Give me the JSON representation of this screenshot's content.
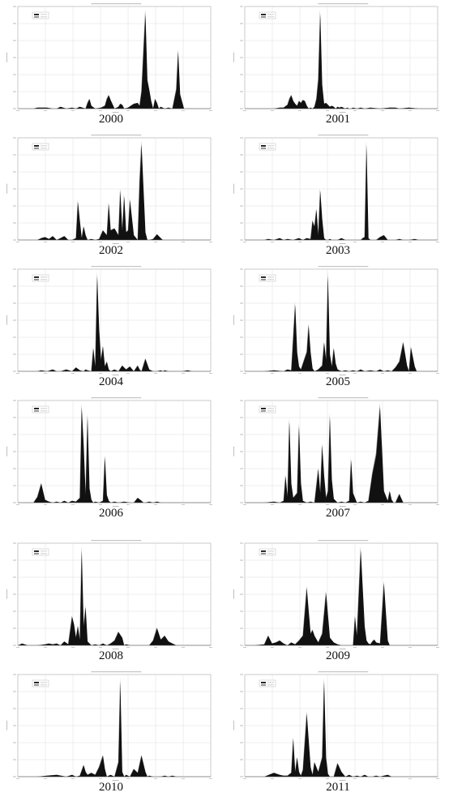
{
  "figure": {
    "layout": "6 rows x 2 columns of yearly area plots"
  },
  "chart_data": [
    {
      "type": "area",
      "year_label": "2000",
      "x": [
        0.05,
        0.08,
        0.1,
        0.15,
        0.18,
        0.2,
        0.22,
        0.25,
        0.28,
        0.3,
        0.32,
        0.35,
        0.36,
        0.37,
        0.38,
        0.4,
        0.43,
        0.45,
        0.46,
        0.47,
        0.48,
        0.5,
        0.52,
        0.53,
        0.54,
        0.55,
        0.57,
        0.6,
        0.62,
        0.63,
        0.64,
        0.65,
        0.66,
        0.67,
        0.68,
        0.69,
        0.7,
        0.71,
        0.72,
        0.73,
        0.74,
        0.76,
        0.78,
        0.8,
        0.82,
        0.83,
        0.84,
        0.86,
        0.9
      ],
      "y": [
        0,
        0,
        0.01,
        0.01,
        0,
        0,
        0.02,
        0,
        0.01,
        0,
        0.02,
        0,
        0.06,
        0.1,
        0.03,
        0,
        0.01,
        0.03,
        0.1,
        0.14,
        0.09,
        0,
        0.02,
        0.05,
        0.04,
        0,
        0.01,
        0.05,
        0.06,
        0.03,
        0.18,
        0.6,
        1.0,
        0.3,
        0.2,
        0.08,
        0,
        0.1,
        0.06,
        0,
        0.02,
        0,
        0.01,
        0,
        0.2,
        0.6,
        0.15,
        0,
        0
      ]
    },
    {
      "type": "area",
      "year_label": "2001",
      "x": [
        0.05,
        0.1,
        0.15,
        0.18,
        0.2,
        0.22,
        0.23,
        0.24,
        0.25,
        0.26,
        0.27,
        0.28,
        0.29,
        0.3,
        0.31,
        0.32,
        0.33,
        0.34,
        0.35,
        0.36,
        0.37,
        0.38,
        0.39,
        0.4,
        0.41,
        0.42,
        0.43,
        0.44,
        0.45,
        0.46,
        0.47,
        0.48,
        0.49,
        0.5,
        0.52,
        0.53,
        0.54,
        0.55,
        0.56,
        0.58,
        0.6,
        0.62,
        0.65,
        0.7,
        0.75,
        0.78,
        0.8,
        0.85,
        0.9
      ],
      "y": [
        0,
        0,
        0,
        0.01,
        0.01,
        0.04,
        0.1,
        0.14,
        0.08,
        0.05,
        0.03,
        0.08,
        0.06,
        0.09,
        0.08,
        0.03,
        0,
        0.01,
        0,
        0.02,
        0.1,
        0.3,
        1.0,
        0.25,
        0.05,
        0.06,
        0.04,
        0.02,
        0.03,
        0.02,
        0,
        0.02,
        0.01,
        0.02,
        0,
        0.01,
        0,
        0,
        0.01,
        0,
        0.01,
        0,
        0.01,
        0,
        0.01,
        0.01,
        0,
        0.01,
        0
      ]
    },
    {
      "type": "area",
      "year_label": "2002",
      "x": [
        0.05,
        0.1,
        0.12,
        0.14,
        0.16,
        0.18,
        0.2,
        0.22,
        0.24,
        0.26,
        0.28,
        0.3,
        0.31,
        0.32,
        0.33,
        0.34,
        0.35,
        0.36,
        0.38,
        0.4,
        0.42,
        0.44,
        0.46,
        0.47,
        0.48,
        0.5,
        0.52,
        0.53,
        0.54,
        0.55,
        0.56,
        0.57,
        0.58,
        0.6,
        0.62,
        0.63,
        0.64,
        0.66,
        0.67,
        0.68,
        0.7,
        0.72,
        0.74,
        0.75,
        0.76,
        0.78,
        0.8,
        0.82,
        0.84
      ],
      "y": [
        0,
        0,
        0.02,
        0.03,
        0.01,
        0.04,
        0,
        0.02,
        0.04,
        0,
        0,
        0.02,
        0.4,
        0.2,
        0.02,
        0.14,
        0.05,
        0,
        0.01,
        0,
        0.01,
        0.1,
        0.05,
        0.38,
        0.1,
        0.12,
        0.05,
        0.52,
        0.1,
        0.46,
        0.08,
        0.1,
        0.42,
        0.05,
        0,
        0.6,
        1.0,
        0.08,
        0,
        0,
        0.01,
        0.06,
        0.02,
        0,
        0,
        0,
        0,
        0,
        0
      ]
    },
    {
      "type": "area",
      "year_label": "2003",
      "x": [
        0.05,
        0.1,
        0.12,
        0.15,
        0.18,
        0.2,
        0.22,
        0.25,
        0.28,
        0.3,
        0.32,
        0.34,
        0.35,
        0.36,
        0.37,
        0.38,
        0.39,
        0.4,
        0.41,
        0.42,
        0.43,
        0.44,
        0.45,
        0.46,
        0.48,
        0.5,
        0.52,
        0.54,
        0.56,
        0.58,
        0.6,
        0.61,
        0.62,
        0.63,
        0.64,
        0.65,
        0.66,
        0.68,
        0.7,
        0.72,
        0.74,
        0.76,
        0.78,
        0.8,
        0.82,
        0.85,
        0.88,
        0.9,
        0.92
      ],
      "y": [
        0,
        0,
        0.01,
        0,
        0.02,
        0,
        0.01,
        0,
        0.02,
        0,
        0.02,
        0.01,
        0.2,
        0.14,
        0.32,
        0.05,
        0.52,
        0.22,
        0.02,
        0,
        0,
        0.01,
        0,
        0,
        0,
        0.02,
        0,
        0,
        0,
        0,
        0,
        0.02,
        0.03,
        1.0,
        0.02,
        0,
        0,
        0,
        0.03,
        0.05,
        0,
        0,
        0,
        0.01,
        0,
        0,
        0.01,
        0,
        0
      ]
    },
    {
      "type": "area",
      "year_label": "2004",
      "x": [
        0.05,
        0.1,
        0.12,
        0.15,
        0.18,
        0.2,
        0.22,
        0.25,
        0.28,
        0.3,
        0.32,
        0.34,
        0.35,
        0.36,
        0.38,
        0.39,
        0.4,
        0.41,
        0.42,
        0.43,
        0.44,
        0.45,
        0.46,
        0.47,
        0.48,
        0.5,
        0.52,
        0.54,
        0.56,
        0.58,
        0.6,
        0.62,
        0.63,
        0.64,
        0.66,
        0.68,
        0.7,
        0.72,
        0.74,
        0.75,
        0.76,
        0.78,
        0.8,
        0.82,
        0.85,
        0.88,
        0.9,
        0.92,
        0.95
      ],
      "y": [
        0,
        0,
        0.01,
        0,
        0.02,
        0,
        0,
        0.02,
        0,
        0.04,
        0.01,
        0,
        0.02,
        0.01,
        0,
        0.24,
        0.05,
        1.0,
        0.44,
        0.12,
        0.26,
        0.05,
        0.1,
        0.02,
        0,
        0.02,
        0,
        0.06,
        0.02,
        0.05,
        0,
        0.06,
        0.02,
        0,
        0.13,
        0.02,
        0,
        0,
        0.01,
        0,
        0.01,
        0,
        0,
        0,
        0,
        0.01,
        0,
        0,
        0
      ]
    },
    {
      "type": "area",
      "year_label": "2005",
      "x": [
        0.05,
        0.1,
        0.15,
        0.2,
        0.22,
        0.24,
        0.26,
        0.27,
        0.28,
        0.29,
        0.3,
        0.32,
        0.33,
        0.34,
        0.35,
        0.36,
        0.38,
        0.4,
        0.41,
        0.42,
        0.43,
        0.44,
        0.45,
        0.46,
        0.47,
        0.48,
        0.5,
        0.52,
        0.54,
        0.56,
        0.58,
        0.6,
        0.62,
        0.65,
        0.68,
        0.7,
        0.72,
        0.74,
        0.76,
        0.78,
        0.8,
        0.82,
        0.84,
        0.85,
        0.86,
        0.88,
        0.89,
        0.9,
        0.92
      ],
      "y": [
        0,
        0,
        0.01,
        0,
        0.02,
        0.01,
        0.7,
        0.2,
        0.05,
        0.02,
        0.08,
        0.2,
        0.48,
        0.2,
        0.03,
        0,
        0.02,
        0.06,
        0.3,
        0.12,
        1.0,
        0.18,
        0.05,
        0.24,
        0.08,
        0.02,
        0,
        0.01,
        0,
        0.01,
        0,
        0.02,
        0,
        0.01,
        0,
        0.02,
        0,
        0.01,
        0,
        0.04,
        0.1,
        0.3,
        0.06,
        0,
        0.25,
        0.05,
        0,
        0,
        0
      ]
    },
    {
      "type": "area",
      "year_label": "2006",
      "x": [
        0.05,
        0.08,
        0.1,
        0.12,
        0.14,
        0.16,
        0.18,
        0.2,
        0.22,
        0.24,
        0.26,
        0.28,
        0.3,
        0.32,
        0.33,
        0.34,
        0.35,
        0.36,
        0.37,
        0.38,
        0.39,
        0.4,
        0.42,
        0.44,
        0.45,
        0.46,
        0.47,
        0.48,
        0.5,
        0.52,
        0.55,
        0.58,
        0.6,
        0.62,
        0.64,
        0.65,
        0.66,
        0.68,
        0.7,
        0.72,
        0.74,
        0.76,
        0.78,
        0.8,
        0.82,
        0.85,
        0.88,
        0.9,
        0.92
      ],
      "y": [
        0,
        0,
        0.06,
        0.2,
        0.03,
        0.01,
        0,
        0.01,
        0,
        0.02,
        0,
        0.02,
        0.01,
        0.05,
        1.0,
        0.6,
        0.08,
        0.9,
        0.15,
        0.03,
        0,
        0.01,
        0,
        0.02,
        0.48,
        0.08,
        0.02,
        0,
        0.01,
        0,
        0.01,
        0,
        0,
        0.05,
        0.02,
        0,
        0,
        0.01,
        0,
        0.01,
        0,
        0,
        0,
        0,
        0,
        0,
        0,
        0,
        0
      ]
    },
    {
      "type": "area",
      "year_label": "2007",
      "x": [
        0.05,
        0.1,
        0.15,
        0.18,
        0.2,
        0.21,
        0.22,
        0.23,
        0.24,
        0.25,
        0.27,
        0.28,
        0.29,
        0.3,
        0.32,
        0.34,
        0.36,
        0.38,
        0.39,
        0.4,
        0.41,
        0.42,
        0.43,
        0.44,
        0.45,
        0.46,
        0.47,
        0.48,
        0.5,
        0.52,
        0.54,
        0.55,
        0.56,
        0.58,
        0.6,
        0.62,
        0.64,
        0.66,
        0.68,
        0.7,
        0.72,
        0.74,
        0.75,
        0.76,
        0.77,
        0.78,
        0.8,
        0.82,
        0.84
      ],
      "y": [
        0,
        0,
        0.01,
        0,
        0.02,
        0.28,
        0.06,
        0.85,
        0.2,
        0.05,
        0.1,
        0.8,
        0.2,
        0.02,
        0,
        0.01,
        0,
        0.35,
        0.1,
        0.6,
        0.28,
        0.05,
        0.12,
        0.9,
        0.24,
        0.04,
        0.02,
        0,
        0.01,
        0,
        0.02,
        0.45,
        0.1,
        0,
        0.01,
        0,
        0.02,
        0.3,
        0.5,
        1.0,
        0.12,
        0.02,
        0.12,
        0.03,
        0,
        0,
        0.09,
        0,
        0
      ]
    },
    {
      "type": "area",
      "year_label": "2008",
      "x": [
        0.02,
        0.05,
        0.1,
        0.14,
        0.16,
        0.18,
        0.2,
        0.22,
        0.24,
        0.26,
        0.28,
        0.29,
        0.3,
        0.31,
        0.32,
        0.33,
        0.34,
        0.35,
        0.36,
        0.38,
        0.4,
        0.42,
        0.44,
        0.46,
        0.48,
        0.5,
        0.52,
        0.54,
        0.55,
        0.56,
        0.58,
        0.6,
        0.62,
        0.64,
        0.66,
        0.68,
        0.7,
        0.72,
        0.74,
        0.76,
        0.78,
        0.8,
        0.82,
        0.84,
        0.86,
        0.88,
        0.9,
        0.92,
        0.95
      ],
      "y": [
        0.02,
        0,
        0,
        0.01,
        0.02,
        0.01,
        0.02,
        0,
        0.04,
        0.01,
        0.3,
        0.22,
        0.08,
        0.2,
        0.06,
        1.0,
        0.2,
        0.4,
        0.04,
        0,
        0.01,
        0,
        0.02,
        0,
        0.02,
        0.05,
        0.14,
        0.08,
        0,
        0.01,
        0,
        0,
        0,
        0,
        0,
        0,
        0.05,
        0.18,
        0.06,
        0.1,
        0.04,
        0.02,
        0,
        0,
        0,
        0,
        0,
        0,
        0
      ]
    },
    {
      "type": "area",
      "year_label": "2009",
      "x": [
        0.05,
        0.1,
        0.12,
        0.14,
        0.16,
        0.18,
        0.2,
        0.22,
        0.24,
        0.26,
        0.28,
        0.3,
        0.32,
        0.34,
        0.35,
        0.36,
        0.38,
        0.4,
        0.42,
        0.44,
        0.46,
        0.48,
        0.5,
        0.52,
        0.54,
        0.56,
        0.57,
        0.58,
        0.6,
        0.62,
        0.63,
        0.64,
        0.65,
        0.66,
        0.67,
        0.68,
        0.7,
        0.72,
        0.74,
        0.75,
        0.76,
        0.78,
        0.8,
        0.82,
        0.84,
        0.86,
        0.88,
        0.9,
        0.92
      ],
      "y": [
        0,
        0.01,
        0.1,
        0.02,
        0.03,
        0.05,
        0.02,
        0,
        0.03,
        0.01,
        0.05,
        0.1,
        0.6,
        0.12,
        0.16,
        0.1,
        0.03,
        0.12,
        0.55,
        0.08,
        0.03,
        0.01,
        0,
        0,
        0,
        0,
        0.3,
        0.1,
        1.0,
        0.2,
        0.05,
        0.02,
        0.01,
        0.04,
        0.06,
        0.03,
        0.02,
        0.65,
        0.05,
        0,
        0,
        0,
        0,
        0,
        0,
        0,
        0,
        0,
        0
      ]
    },
    {
      "type": "area",
      "year_label": "2010",
      "x": [
        0.05,
        0.1,
        0.15,
        0.2,
        0.25,
        0.28,
        0.3,
        0.32,
        0.34,
        0.35,
        0.36,
        0.38,
        0.4,
        0.42,
        0.44,
        0.45,
        0.46,
        0.47,
        0.48,
        0.5,
        0.52,
        0.53,
        0.54,
        0.55,
        0.56,
        0.58,
        0.6,
        0.62,
        0.64,
        0.66,
        0.67,
        0.68,
        0.7,
        0.72,
        0.74,
        0.76,
        0.78,
        0.8,
        0.82,
        0.84,
        0.86,
        0.88,
        0.9,
        0.92,
        0.94,
        0.95,
        0.96,
        0.97,
        0.98
      ],
      "y": [
        0,
        0,
        0.01,
        0.02,
        0,
        0.02,
        0,
        0.01,
        0.12,
        0.05,
        0.02,
        0.04,
        0.02,
        0.1,
        0.22,
        0.08,
        0,
        0.01,
        0.02,
        0,
        0.15,
        1.0,
        0.05,
        0,
        0.02,
        0,
        0.08,
        0.04,
        0.22,
        0.05,
        0,
        0.01,
        0,
        0,
        0,
        0.01,
        0,
        0.01,
        0,
        0,
        0,
        0,
        0,
        0,
        0,
        0,
        0,
        0,
        0
      ]
    },
    {
      "type": "area",
      "year_label": "2011",
      "x": [
        0.05,
        0.1,
        0.15,
        0.18,
        0.2,
        0.22,
        0.24,
        0.25,
        0.26,
        0.27,
        0.28,
        0.29,
        0.3,
        0.32,
        0.34,
        0.35,
        0.36,
        0.38,
        0.4,
        0.41,
        0.42,
        0.43,
        0.44,
        0.46,
        0.48,
        0.5,
        0.52,
        0.54,
        0.56,
        0.58,
        0.6,
        0.62,
        0.64,
        0.66,
        0.68,
        0.7,
        0.72,
        0.74,
        0.76,
        0.78,
        0.8,
        0.82,
        0.84,
        0.86,
        0.88,
        0.9,
        0.92,
        0.94,
        0.96
      ],
      "y": [
        0,
        0,
        0.04,
        0.02,
        0.01,
        0.01,
        0.04,
        0.4,
        0.05,
        0.2,
        0.05,
        0.01,
        0.07,
        0.66,
        0.1,
        0.02,
        0.15,
        0.05,
        0.2,
        1.0,
        0.2,
        0.03,
        0,
        0,
        0.14,
        0.05,
        0,
        0.02,
        0,
        0.01,
        0,
        0.02,
        0,
        0,
        0.01,
        0,
        0.01,
        0.02,
        0,
        0,
        0,
        0,
        0,
        0,
        0,
        0,
        0,
        0,
        0
      ]
    }
  ],
  "theme": {
    "plot_bg": "#ffffff",
    "plot_border": "#a8a8a8",
    "grid": "#d6d6d6",
    "fill_dark": "#111111",
    "fill_light": "#8a8a8a",
    "label_color": "#111111"
  }
}
